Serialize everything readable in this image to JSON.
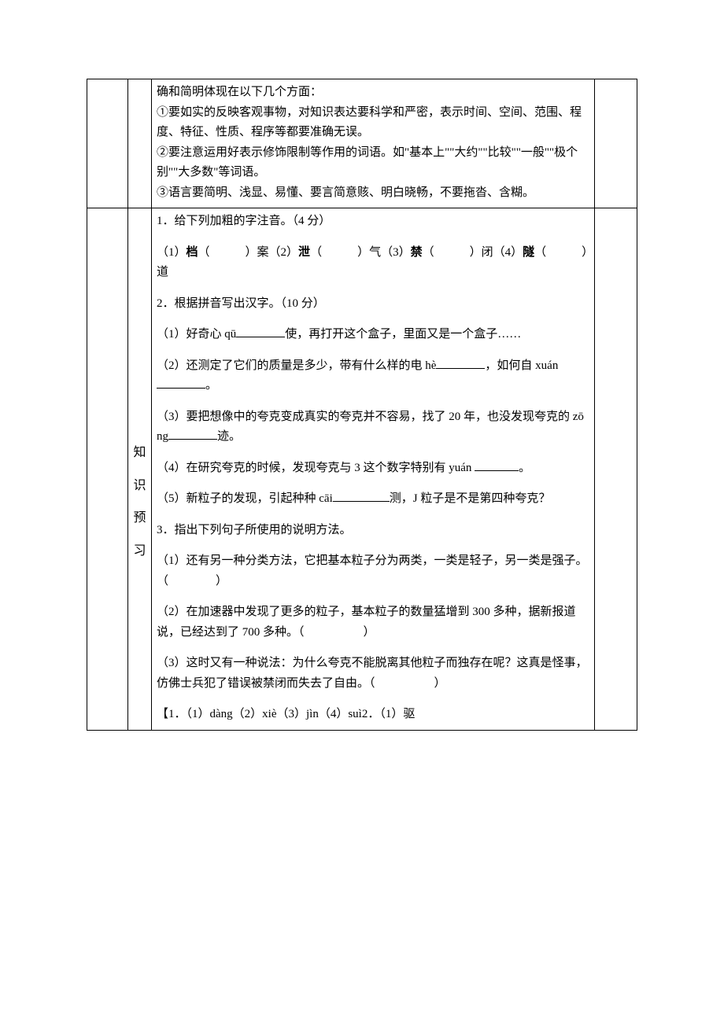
{
  "row1": {
    "line1": "确和简明体现在以下几个方面：",
    "line2": "①要如实的反映客观事物，对知识表达要科学和严密，表示时间、空间、范围、程度、特征、性质、程序等都要准确无误。",
    "line3": "②要注意运用好表示修饰限制等作用的词语。如\"基本上\"\"大约\"\"比较\"\"一般\"\"极个别\"\"大多数\"等词语。",
    "line4": "③语言要简明、浅显、易懂、要言简意赅、明白晓畅，不要拖沓、含糊。"
  },
  "row2": {
    "vert": [
      "知",
      "识",
      "预",
      "习"
    ],
    "q1_head": "1．给下列加粗的字注音。（4 分）",
    "q1_a": "（1）",
    "q1_a_bold": "档",
    "q1_a_tail": "（　　　）案（2）",
    "q1_b_bold": "泄",
    "q1_b_tail": "（　　　）气（3）",
    "q1_c_bold": "禁",
    "q1_c_tail": "（　　　）闭（4）",
    "q1_d_bold": "隧",
    "q1_d_tail": "（　　　）道",
    "q2_head": "2．根据拼音写出汉字。（10 分）",
    "q2_1a": "（1）好奇心 qū",
    "q2_1b": "使，再打开这个盒子，里面又是一个盒子……",
    "q2_2a": "（2）还测定了它们的质量是多少，带有什么样的电 hè",
    "q2_2b": "，如何自 xuán",
    "q2_2c": "。",
    "q2_3a": "（3）要把想像中的夸克变成真实的夸克并不容易，找了 20 年，也没发现夸克的 zōng",
    "q2_3b": "迹。",
    "q2_4a": "（4）在研究夸克的时候，发现夸克与 3 这个数字特别有 yuán ",
    "q2_4b": "。",
    "q2_5a": "（5）新粒子的发现，引起种种 cāi",
    "q2_5b": "测，J 粒子是不是第四种夸克？",
    "q3_head": "3．指出下列句子所使用的说明方法。",
    "q3_1": "（1）还有另一种分类方法，它把基本粒子分为两类，一类是轻子，另一类是强子。（　　　　）",
    "q3_2": "（2）在加速器中发现了更多的粒子，基本粒子的数量猛增到 300 多种，据新报道说，已经达到了 700 多种。（　　　　　）",
    "q3_3": "（3）这时又有一种说法：为什么夸克不能脱离其他粒子而独存在呢？这真是怪事，仿佛士兵犯了错误被禁闭而失去了自由。（　　　　　）",
    "ans": "【1．（1）dàng（2）xiè（3）jìn（4）suì2．（1）驱"
  }
}
